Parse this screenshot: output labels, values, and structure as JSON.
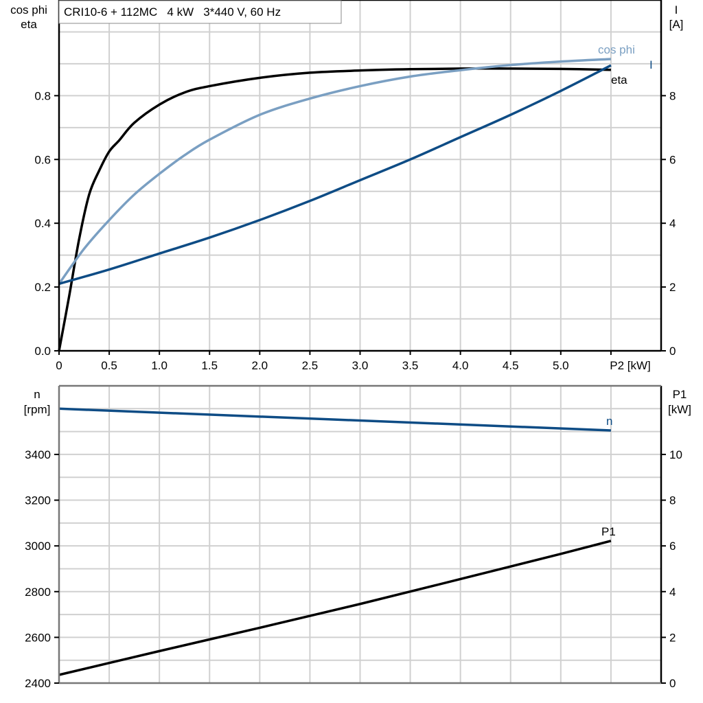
{
  "chart_data": [
    {
      "type": "line",
      "title": "CRI10-6 + 112MC   4 kW   3*440 V, 60 Hz",
      "xlabel": "P2 [kW]",
      "ylabel_left": [
        "cos phi",
        "eta"
      ],
      "ylabel_right": [
        "I",
        "[A]"
      ],
      "xlim": [
        0,
        6
      ],
      "ylim_left": [
        0,
        1.1
      ],
      "ylim_right": [
        0,
        11
      ],
      "x_ticks": [
        "0",
        "0.5",
        "1.0",
        "1.5",
        "2.0",
        "2.5",
        "3.0",
        "3.5",
        "4.0",
        "4.5",
        "5.0"
      ],
      "y_ticks_left": [
        "0.0",
        "0.2",
        "0.4",
        "0.6",
        "0.8"
      ],
      "y_ticks_right": [
        "0",
        "2",
        "4",
        "6",
        "8"
      ],
      "grid": true,
      "series": [
        {
          "name": "eta",
          "axis": "left",
          "color": "#000000",
          "x": [
            0,
            0.1,
            0.2,
            0.3,
            0.4,
            0.5,
            0.6,
            0.75,
            1.0,
            1.25,
            1.5,
            2.0,
            2.5,
            3.0,
            3.5,
            4.0,
            4.5,
            5.0,
            5.5
          ],
          "y": [
            0,
            0.17,
            0.35,
            0.49,
            0.565,
            0.625,
            0.66,
            0.715,
            0.772,
            0.81,
            0.83,
            0.856,
            0.872,
            0.879,
            0.883,
            0.885,
            0.885,
            0.884,
            0.881
          ]
        },
        {
          "name": "cos phi",
          "axis": "left",
          "color": "#7a9fc2",
          "x": [
            0,
            0.25,
            0.5,
            0.75,
            1.0,
            1.25,
            1.5,
            2.0,
            2.5,
            3.0,
            3.5,
            4.0,
            4.5,
            5.0,
            5.5
          ],
          "y": [
            0.21,
            0.32,
            0.41,
            0.49,
            0.555,
            0.613,
            0.662,
            0.74,
            0.791,
            0.83,
            0.86,
            0.88,
            0.896,
            0.907,
            0.915
          ]
        },
        {
          "name": "I",
          "axis": "right",
          "color": "#0e4c85",
          "x": [
            0,
            0.5,
            1.0,
            1.5,
            2.0,
            2.5,
            3.0,
            3.5,
            4.0,
            4.5,
            5.0,
            5.5
          ],
          "y": [
            2.1,
            2.55,
            3.05,
            3.55,
            4.1,
            4.7,
            5.35,
            6.0,
            6.7,
            7.4,
            8.15,
            8.95
          ]
        }
      ]
    },
    {
      "type": "line",
      "ylabel_left": [
        "n",
        "[rpm]"
      ],
      "ylabel_right": [
        "P1",
        "[kW]"
      ],
      "xlim": [
        0,
        6
      ],
      "ylim_left": [
        2400,
        3700
      ],
      "ylim_right": [
        0,
        13
      ],
      "y_ticks_left": [
        "2400",
        "2600",
        "2800",
        "3000",
        "3200",
        "3400"
      ],
      "y_ticks_right": [
        "0",
        "2",
        "4",
        "6",
        "8",
        "10"
      ],
      "grid": true,
      "series": [
        {
          "name": "n",
          "axis": "left",
          "color": "#0e4c85",
          "x": [
            0,
            5.5
          ],
          "y": [
            3600,
            3505
          ]
        },
        {
          "name": "P1",
          "axis": "right",
          "color": "#000000",
          "x": [
            0,
            1,
            2,
            3,
            4,
            5,
            5.5
          ],
          "y": [
            0.36,
            1.4,
            2.42,
            3.46,
            4.55,
            5.65,
            6.22
          ]
        }
      ]
    }
  ]
}
